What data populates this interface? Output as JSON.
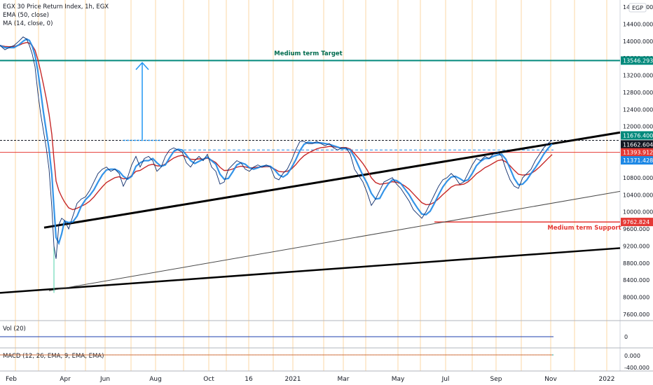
{
  "header": {
    "title": "EGX 30 Price Return Index, 1h, EGX",
    "indicator_1": "EMA (50, close)",
    "indicator_2": "MA (14, close, 0)",
    "currency_badge": "EGP"
  },
  "annotations": {
    "target_label": "Medium term Target",
    "support_label": "Medium term Support"
  },
  "chart_data": {
    "type": "line",
    "title": "EGX 30 Price Return Index, 1h, EGX",
    "x_ticks": [
      "Feb",
      "Apr",
      "Jun",
      "Aug",
      "Oct",
      "16",
      "2021",
      "Mar",
      "May",
      "Jul",
      "Sep",
      "Nov",
      "2022"
    ],
    "y_ticks": [
      "7600.000",
      "8000.000",
      "8400.000",
      "8800.000",
      "9200.000",
      "9600.000",
      "10000.000",
      "10400.000",
      "10800.000",
      "11200.000",
      "11600.000",
      "12000.000",
      "12400.000",
      "12800.000",
      "13200.000",
      "13600.000",
      "14000.000",
      "14400.000",
      "14800.000"
    ],
    "ylim": [
      7500,
      14900
    ],
    "price_labels": {
      "target": "13546.293",
      "resistance": "11676.400",
      "last": "11662.604",
      "horizontal_red": "11393.912",
      "ma": "11371.428",
      "support": "9762.824"
    },
    "levels": {
      "target": 13546.293,
      "resistance": 11676.4,
      "horizontal_red": 11393.912,
      "support": 9762.824
    },
    "series": [
      {
        "name": "EGX 30",
        "x": [
          0,
          7,
          13,
          20,
          27,
          33,
          38,
          42,
          46,
          50,
          54,
          58,
          62,
          66,
          70,
          74,
          77,
          80,
          84,
          88,
          92,
          98,
          104,
          110,
          116,
          122,
          128,
          134,
          140,
          146,
          152,
          158,
          164,
          170,
          176,
          182,
          188,
          194,
          200,
          206,
          212,
          218,
          224,
          230,
          236,
          242,
          248,
          254,
          260,
          266,
          272,
          278,
          284,
          290,
          296,
          302,
          308,
          314,
          320,
          326,
          332,
          338,
          344,
          350,
          356,
          362,
          368,
          374,
          380,
          386,
          392,
          398,
          404,
          410,
          416,
          422,
          428,
          434,
          440,
          446,
          452,
          458,
          464,
          470,
          476,
          482,
          488,
          494,
          500,
          506,
          512,
          518,
          524,
          530,
          536,
          542,
          548,
          554,
          560,
          566,
          572,
          578,
          584,
          590,
          596,
          602,
          608,
          614,
          620,
          626,
          632,
          638,
          644,
          650,
          656,
          662,
          668,
          674,
          680,
          686,
          692,
          698,
          704,
          710,
          716,
          722,
          728,
          734,
          740,
          746,
          752,
          758,
          764,
          770,
          776,
          782,
          788
        ],
        "y": [
          13900,
          13800,
          13850,
          13900,
          14000,
          14100,
          14050,
          13900,
          13700,
          13400,
          12800,
          12300,
          11900,
          11500,
          11000,
          10100,
          9200,
          8900,
          9700,
          9850,
          9800,
          9600,
          9900,
          10200,
          10300,
          10350,
          10500,
          10700,
          10900,
          11000,
          11050,
          10950,
          11000,
          10900,
          10600,
          10800,
          11100,
          11300,
          11050,
          11250,
          11300,
          11200,
          10950,
          11050,
          11300,
          11450,
          11500,
          11450,
          11400,
          11150,
          11050,
          11200,
          11300,
          11200,
          11350,
          11050,
          10950,
          10650,
          10700,
          11000,
          11100,
          11200,
          11150,
          11000,
          10950,
          11050,
          11100,
          11050,
          11100,
          11050,
          10800,
          10750,
          10900,
          11000,
          11200,
          11450,
          11650,
          11650,
          11600,
          11600,
          11650,
          11600,
          11550,
          11600,
          11500,
          11450,
          11500,
          11500,
          11350,
          11000,
          10850,
          10700,
          10450,
          10150,
          10300,
          10500,
          10700,
          10750,
          10800,
          10650,
          10550,
          10400,
          10250,
          10050,
          9950,
          9850,
          10000,
          10200,
          10400,
          10600,
          10750,
          10800,
          10900,
          10800,
          10650,
          10700,
          10900,
          11100,
          11250,
          11200,
          11300,
          11250,
          11350,
          11400,
          11300,
          11000,
          10750,
          10600,
          10550,
          10800,
          10900,
          11000,
          11200,
          11350,
          11500,
          11600,
          11680
        ]
      },
      {
        "name": "EMA (50, close)"
      },
      {
        "name": "MA (14, close, 0)"
      }
    ],
    "macd": {
      "legend": "MACD (12, 26, EMA, 9, EMA, EMA)",
      "ticks": [
        "0.000",
        "-400.000"
      ]
    },
    "volume": {
      "legend": "Vol (20)",
      "ticks": [
        "0"
      ]
    },
    "colors": {
      "price": "#1e6fd9",
      "ema": "#c62828",
      "ma": "#1e88e5",
      "target": "#00897b",
      "support": "#e53935",
      "trendline": "#000000"
    }
  }
}
